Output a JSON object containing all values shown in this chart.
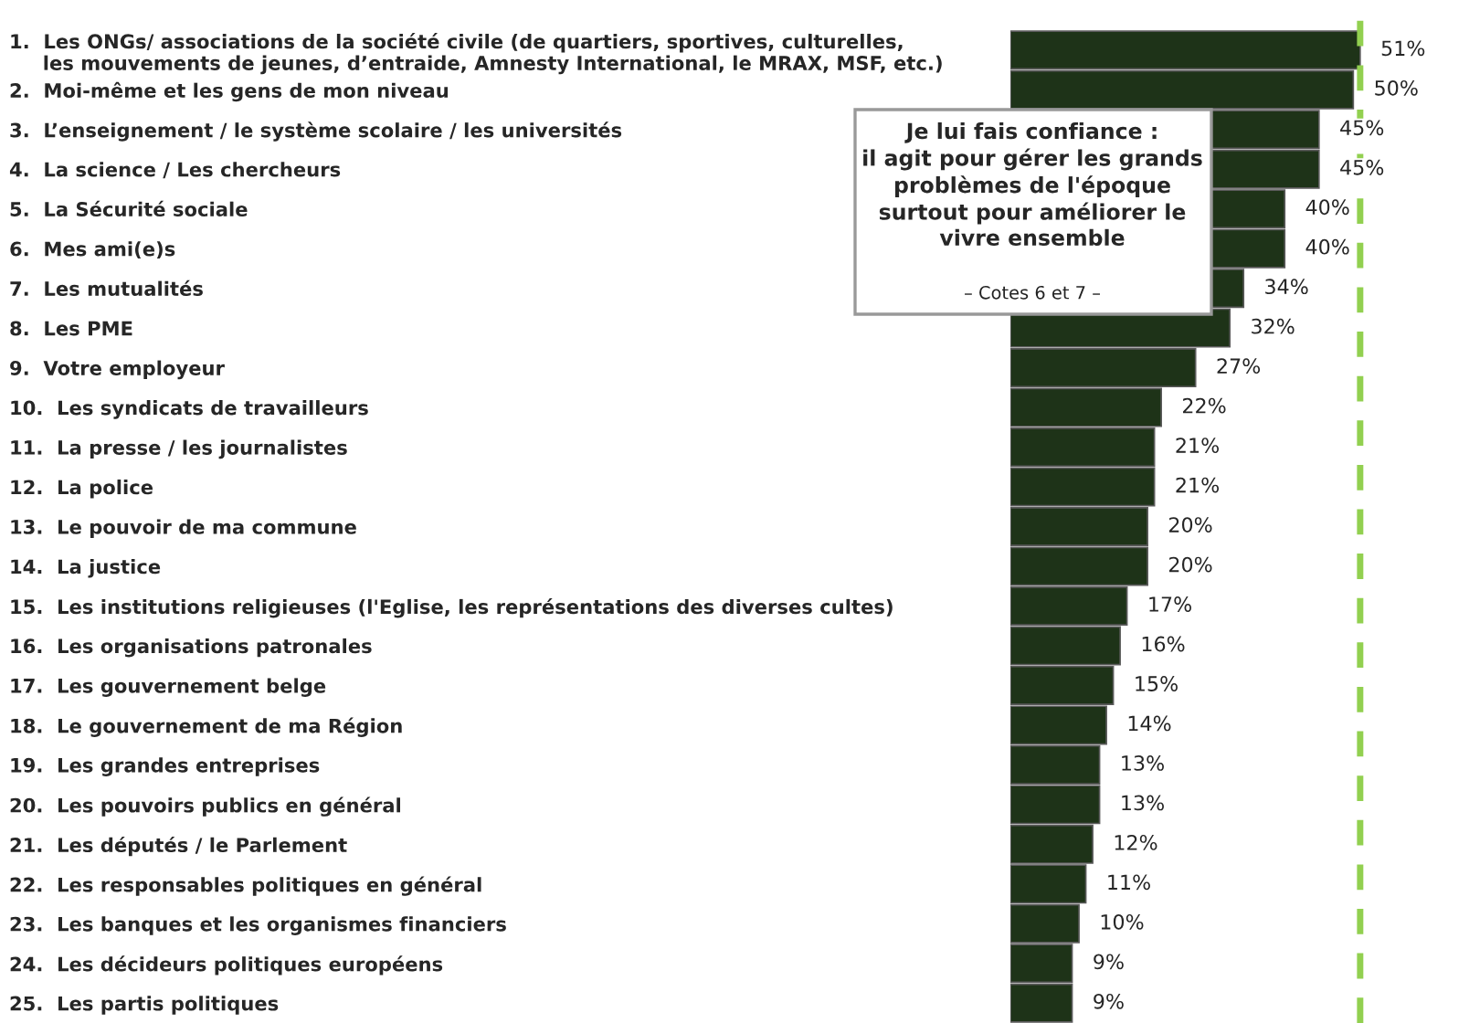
{
  "chart_data": {
    "type": "bar",
    "orientation": "horizontal",
    "tick_labels": "y",
    "grid": false,
    "legend": false,
    "categories": [
      "1.  Les ONGs/ associations de la société civile (de quartiers, sportives, culturelles,\n     les mouvements de jeunes, d’entraide, Amnesty International, le MRAX, MSF, etc.)",
      "2.  Moi-même et les gens de mon niveau",
      "3.  L’enseignement / le système scolaire / les universités",
      "4.  La science / Les chercheurs",
      "5.  La Sécurité sociale",
      "6.  Mes ami(e)s",
      "7.  Les mutualités",
      "8.  Les PME",
      "9.  Votre employeur",
      "10.  Les syndicats de travailleurs",
      "11.  La presse / les journalistes",
      "12.  La police",
      "13.  Le pouvoir de ma commune",
      "14.  La justice",
      "15.  Les institutions religieuses (l'Eglise, les représentations des diverses cultes)",
      "16.  Les organisations patronales",
      "17.  Les gouvernement belge",
      "18.  Le gouvernement de ma Région",
      "19.  Les grandes entreprises",
      "20.  Les pouvoirs publics en général",
      "21.  Les députés / le Parlement",
      "22.  Les responsables politiques en général",
      "23.  Les banques et les organismes financiers",
      "24.  Les décideurs politiques européens",
      "25.  Les partis politiques"
    ],
    "values": [
      51,
      50,
      45,
      45,
      40,
      40,
      34,
      32,
      27,
      22,
      21,
      21,
      20,
      20,
      17,
      16,
      15,
      14,
      13,
      13,
      12,
      11,
      10,
      9,
      9
    ],
    "value_labels": [
      "51%",
      "50%",
      "45%",
      "45%",
      "40%",
      "40%",
      "34%",
      "32%",
      "27%",
      "22%",
      "21%",
      "21%",
      "20%",
      "20%",
      "17%",
      "16%",
      "15%",
      "14%",
      "13%",
      "13%",
      "12%",
      "11%",
      "10%",
      "9%",
      "9%"
    ],
    "color": "#1e3318",
    "ref_lines": [
      {
        "axis": "x",
        "value": 51,
        "color": "#92d050",
        "line_style": "dashed"
      }
    ],
    "annotations": [
      "Je lui fais confiance :\nil agit pour gérer les grands\nproblèmes de l'époque\nsurtout pour améliorer le\nvivre ensemble",
      "– Cotes 6 et 7 –"
    ]
  }
}
